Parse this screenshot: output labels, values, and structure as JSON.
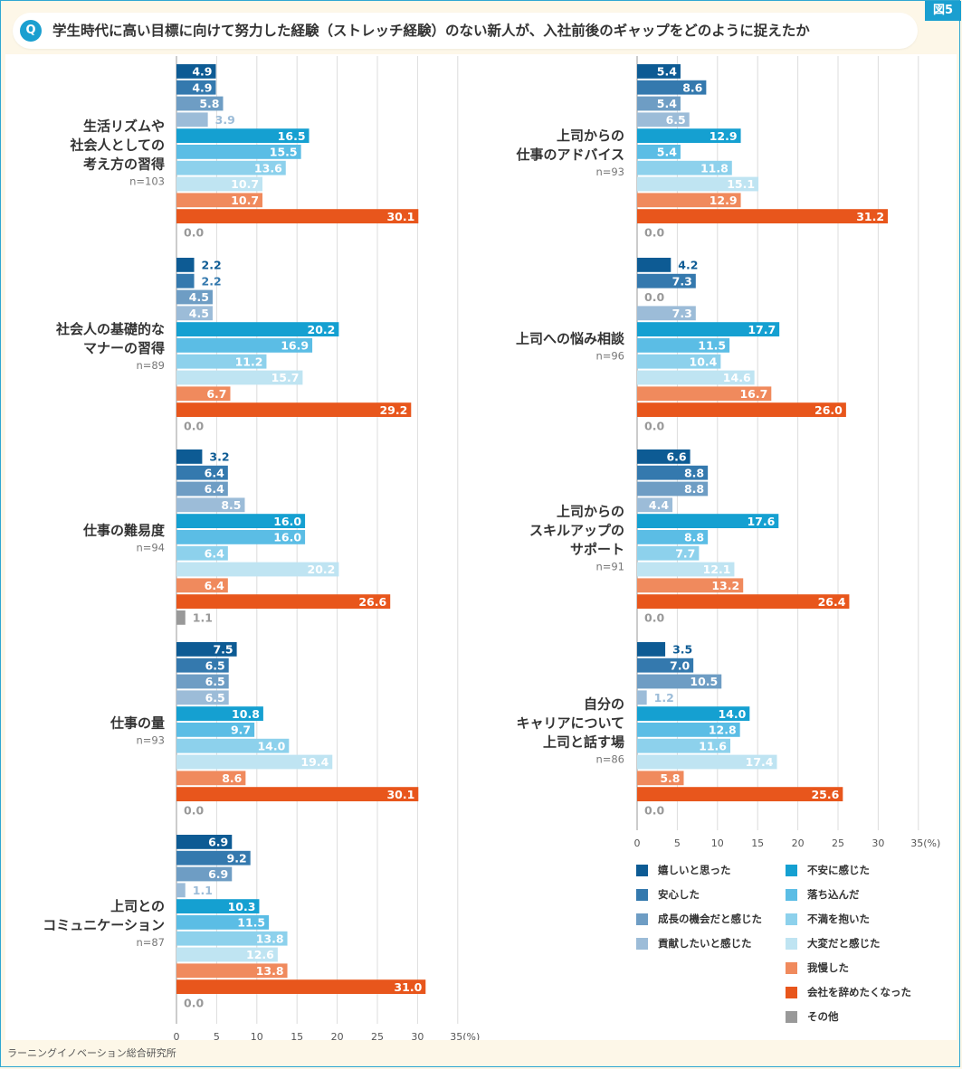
{
  "figure_label": "図5",
  "header": {
    "q_icon": "Q",
    "title": "学生時代に高い目標に向けて努力した経験（ストレッチ経験）のない新人が、入社前後のギャップをどのように捉えたか"
  },
  "source": "ラーニングイノベーション総合研究所",
  "colors": [
    "#0d5b94",
    "#3479ae",
    "#6e9dc4",
    "#9cbcd8",
    "#15a0d1",
    "#5bbde5",
    "#8dd1ec",
    "#bfe4f2",
    "#f08a5d",
    "#e8561c",
    "#999999"
  ],
  "chart_data": {
    "type": "bar",
    "orientation": "horizontal",
    "xlim": [
      0,
      35
    ],
    "x_ticks": [
      "0",
      "5",
      "10",
      "15",
      "20",
      "25",
      "30",
      "35(%)"
    ],
    "grid": true,
    "legend_position": "bottom-right",
    "series_names": [
      "嬉しいと思った",
      "安心した",
      "成長の機会だと感じた",
      "貢献したいと感じた",
      "不安に感じた",
      "落ち込んだ",
      "不満を抱いた",
      "大変だと感じた",
      "我慢した",
      "会社を辞めたくなった",
      "その他"
    ],
    "values_display": {
      "left": [
        [
          "4.9",
          "4.9",
          "5.8",
          "3.9",
          "16.5",
          "15.5",
          "13.6",
          "10.7",
          "10.7",
          "30.1",
          "0.0"
        ],
        [
          "2.2",
          "2.2",
          "4.5",
          "4.5",
          "20.2",
          "16.9",
          "11.2",
          "15.7",
          "6.7",
          "29.2",
          "0.0"
        ],
        [
          "3.2",
          "6.4",
          "6.4",
          "8.5",
          "16.0",
          "16.0",
          "6.4",
          "20.2",
          "6.4",
          "26.6",
          "1.1"
        ],
        [
          "7.5",
          "6.5",
          "6.5",
          "6.5",
          "10.8",
          "9.7",
          "14.0",
          "19.4",
          "8.6",
          "30.1",
          "0.0"
        ],
        [
          "6.9",
          "9.2",
          "6.9",
          "1.1",
          "10.3",
          "11.5",
          "13.8",
          "12.6",
          "13.8",
          "31.0",
          "0.0"
        ]
      ],
      "right": [
        [
          "5.4",
          "8.6",
          "5.4",
          "6.5",
          "12.9",
          "5.4",
          "11.8",
          "15.1",
          "12.9",
          "31.2",
          "0.0"
        ],
        [
          "4.2",
          "7.3",
          "0.0",
          "7.3",
          "17.7",
          "11.5",
          "10.4",
          "14.6",
          "16.7",
          "26.0",
          "0.0"
        ],
        [
          "6.6",
          "8.8",
          "8.8",
          "4.4",
          "17.6",
          "8.8",
          "7.7",
          "12.1",
          "13.2",
          "26.4",
          "0.0"
        ],
        [
          "3.5",
          "7.0",
          "10.5",
          "1.2",
          "14.0",
          "12.8",
          "11.6",
          "17.4",
          "5.8",
          "25.6",
          "0.0"
        ]
      ]
    },
    "groups": [
      {
        "panel": "left",
        "label": [
          "生活リズムや",
          "社会人としての",
          "考え方の習得"
        ],
        "n": "n=103",
        "values": [
          4.9,
          4.9,
          5.8,
          3.9,
          16.5,
          15.5,
          13.6,
          10.7,
          10.7,
          30.1,
          0.0
        ]
      },
      {
        "panel": "left",
        "label": [
          "社会人の基礎的な",
          "マナーの習得"
        ],
        "n": "n=89",
        "values": [
          2.2,
          2.2,
          4.5,
          4.5,
          20.2,
          16.9,
          11.2,
          15.7,
          6.7,
          29.2,
          0.0
        ]
      },
      {
        "panel": "left",
        "label": [
          "仕事の難易度"
        ],
        "n": "n=94",
        "values": [
          3.2,
          6.4,
          6.4,
          8.5,
          16.0,
          16.0,
          6.4,
          20.2,
          6.4,
          26.6,
          1.1
        ]
      },
      {
        "panel": "left",
        "label": [
          "仕事の量"
        ],
        "n": "n=93",
        "values": [
          7.5,
          6.5,
          6.5,
          6.5,
          10.8,
          9.7,
          14.0,
          19.4,
          8.6,
          30.1,
          0.0
        ]
      },
      {
        "panel": "left",
        "label": [
          "上司との",
          "コミュニケーション"
        ],
        "n": "n=87",
        "values": [
          6.9,
          9.2,
          6.9,
          1.1,
          10.3,
          11.5,
          13.8,
          12.6,
          13.8,
          31.0,
          0.0
        ]
      },
      {
        "panel": "right",
        "label": [
          "上司からの",
          "仕事のアドバイス"
        ],
        "n": "n=93",
        "values": [
          5.4,
          8.6,
          5.4,
          6.5,
          12.9,
          5.4,
          11.8,
          15.1,
          12.9,
          31.2,
          0.0
        ]
      },
      {
        "panel": "right",
        "label": [
          "上司への悩み相談"
        ],
        "n": "n=96",
        "values": [
          4.2,
          7.3,
          0.0,
          7.3,
          17.7,
          11.5,
          10.4,
          14.6,
          16.7,
          26.0,
          0.0
        ]
      },
      {
        "panel": "right",
        "label": [
          "上司からの",
          "スキルアップの",
          "サポート"
        ],
        "n": "n=91",
        "values": [
          6.6,
          8.8,
          8.8,
          4.4,
          17.6,
          8.8,
          7.7,
          12.1,
          13.2,
          26.4,
          0.0
        ]
      },
      {
        "panel": "right",
        "label": [
          "自分の",
          "キャリアについて",
          "上司と話す場"
        ],
        "n": "n=86",
        "values": [
          3.5,
          7.0,
          10.5,
          1.2,
          14.0,
          12.8,
          11.6,
          17.4,
          5.8,
          25.6,
          0.0
        ]
      }
    ]
  }
}
